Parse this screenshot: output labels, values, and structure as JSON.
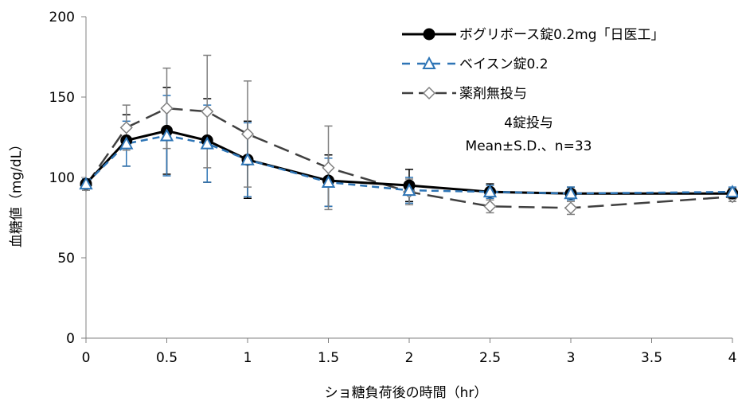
{
  "chart_data": {
    "type": "line",
    "xlabel": "ショ糖負荷後の時間（hr）",
    "ylabel": "血糖値（mg/dL）",
    "xlim": [
      0,
      4
    ],
    "ylim": [
      0,
      200
    ],
    "x_ticks": [
      "0",
      "0.5",
      "1",
      "1.5",
      "2",
      "2.5",
      "3",
      "3.5",
      "4"
    ],
    "y_ticks": [
      "0",
      "50",
      "100",
      "150",
      "200"
    ],
    "grid": false,
    "legend_position": "top-right",
    "annotation": {
      "line1": "4錠投与",
      "line2": "Mean±S.D.、n=33"
    },
    "series": [
      {
        "name": "ボグリボース錠0.2mg「日医工」",
        "color": "#000000",
        "line_style": "solid",
        "marker": "filled-circle",
        "x": [
          0,
          0.25,
          0.5,
          0.75,
          1,
          1.5,
          2,
          2.5,
          3,
          4
        ],
        "y": [
          96,
          123,
          129,
          123,
          111,
          98,
          95,
          91,
          90,
          90
        ],
        "sd": [
          3,
          16,
          27,
          26,
          24,
          16,
          10,
          5,
          4,
          3
        ]
      },
      {
        "name": "ベイスン錠0.2",
        "color": "#2e75b6",
        "line_style": "dashed",
        "marker": "open-triangle",
        "x": [
          0,
          0.25,
          0.5,
          0.75,
          1,
          1.5,
          2,
          2.5,
          3,
          4
        ],
        "y": [
          96,
          121,
          126,
          121,
          111,
          97,
          92,
          91,
          90,
          91
        ],
        "sd": [
          3,
          14,
          25,
          24,
          23,
          15,
          8,
          4,
          4,
          3
        ]
      },
      {
        "name": "薬剤無投与",
        "color": "#404040",
        "line_style": "long-dash",
        "marker": "open-diamond",
        "x": [
          0,
          0.25,
          0.5,
          0.75,
          1,
          1.5,
          2,
          2.5,
          3,
          4
        ],
        "y": [
          95,
          131,
          143,
          141,
          127,
          106,
          91,
          82,
          81,
          88
        ],
        "sd": [
          3,
          14,
          25,
          35,
          33,
          26,
          8,
          4,
          4,
          3
        ]
      }
    ]
  }
}
